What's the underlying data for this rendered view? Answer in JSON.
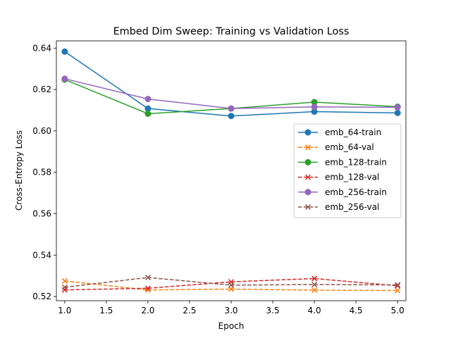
{
  "chart_data": {
    "type": "line",
    "title": "Embed Dim Sweep: Training vs Validation Loss",
    "xlabel": "Epoch",
    "ylabel": "Cross-Entropy Loss",
    "x": [
      1.0,
      2.0,
      3.0,
      4.0,
      5.0
    ],
    "xlim": [
      0.9,
      5.1
    ],
    "ylim": [
      0.518,
      0.6435
    ],
    "xticks": [
      "1.0",
      "1.5",
      "2.0",
      "2.5",
      "3.0",
      "3.5",
      "4.0",
      "4.5",
      "5.0"
    ],
    "yticks": [
      "0.52",
      "0.54",
      "0.56",
      "0.58",
      "0.60",
      "0.62",
      "0.64"
    ],
    "grid": false,
    "legend_position": "center-right",
    "series": [
      {
        "name": "emb_64-train",
        "color": "#1f77b4",
        "linestyle": "solid",
        "marker": "circle",
        "values": [
          0.6383,
          0.6108,
          0.6072,
          0.6093,
          0.6087
        ]
      },
      {
        "name": "emb_64-val",
        "color": "#ff7f0e",
        "linestyle": "dashed",
        "marker": "x",
        "values": [
          0.5275,
          0.5232,
          0.5236,
          0.5231,
          0.5229
        ]
      },
      {
        "name": "emb_128-train",
        "color": "#2ca02c",
        "linestyle": "solid",
        "marker": "circle",
        "values": [
          0.6248,
          0.6083,
          0.6108,
          0.6139,
          0.6117
        ]
      },
      {
        "name": "emb_128-val",
        "color": "#d62728",
        "linestyle": "dashed",
        "marker": "x",
        "values": [
          0.5232,
          0.524,
          0.5271,
          0.5287,
          0.5252
        ]
      },
      {
        "name": "emb_256-train",
        "color": "#9467bd",
        "linestyle": "solid",
        "marker": "circle",
        "values": [
          0.6252,
          0.6154,
          0.6108,
          0.6116,
          0.6114
        ]
      },
      {
        "name": "emb_256-val",
        "color": "#8c564b",
        "linestyle": "dashed",
        "marker": "x",
        "values": [
          0.5245,
          0.5292,
          0.5255,
          0.5258,
          0.5256
        ]
      }
    ]
  }
}
